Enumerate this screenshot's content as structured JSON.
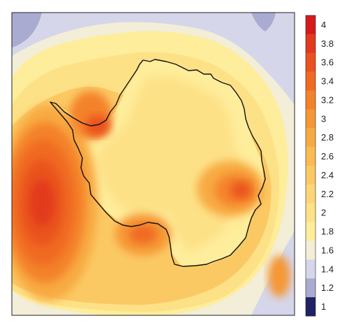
{
  "legend": {
    "levels": [
      {
        "value": "4",
        "color": "#d7191c"
      },
      {
        "value": "3.8",
        "color": "#e23a1d"
      },
      {
        "value": "3.6",
        "color": "#ea521f"
      },
      {
        "value": "3.4",
        "color": "#f06a24"
      },
      {
        "value": "3.2",
        "color": "#f4822b"
      },
      {
        "value": "3",
        "color": "#f69735"
      },
      {
        "value": "2.8",
        "color": "#f8aa42"
      },
      {
        "value": "2.6",
        "color": "#fabb52"
      },
      {
        "value": "2.4",
        "color": "#fbc964"
      },
      {
        "value": "2.2",
        "color": "#fcd676"
      },
      {
        "value": "2",
        "color": "#fde187"
      },
      {
        "value": "1.8",
        "color": "#feed9b"
      },
      {
        "value": "1.6",
        "color": "#f2eed8"
      },
      {
        "value": "1.4",
        "color": "#d5d6ea"
      },
      {
        "value": "1.2",
        "color": "#aaabd0"
      },
      {
        "value": "1",
        "color": "#1f2363"
      }
    ]
  },
  "colors": {
    "frame": "#222222",
    "coastline": "#111111"
  }
}
